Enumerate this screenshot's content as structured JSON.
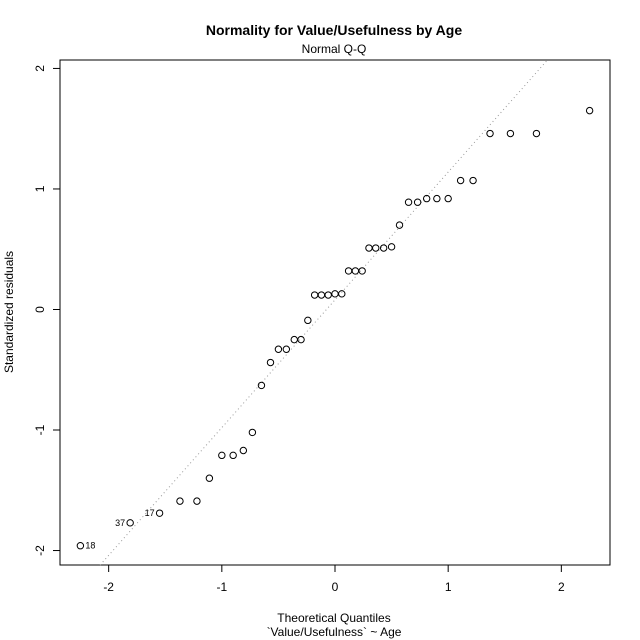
{
  "chart_data": {
    "type": "scatter",
    "title": "Normality for Value/Usefulness by Age",
    "subtitle": "Normal Q-Q",
    "xlabel": "Theoretical Quantiles",
    "xlabel2": "`Value/Usefulness` ~ Age",
    "ylabel": "Standardized residuals",
    "xlim": [
      -2.43,
      2.43
    ],
    "ylim": [
      -2.12,
      2.07
    ],
    "x_ticks": [
      -2,
      -1,
      0,
      1,
      2
    ],
    "y_ticks": [
      -2,
      -1,
      0,
      1,
      2
    ],
    "x_tick_labels": [
      "-2",
      "-1",
      "0",
      "1",
      "2"
    ],
    "y_tick_labels": [
      "-2",
      "-1",
      "0",
      "1",
      "2"
    ],
    "grid": false,
    "reference_line": {
      "slope": 1.06,
      "intercept": 0.08,
      "style": "dotted",
      "color": "#999999"
    },
    "points": [
      {
        "x": -2.25,
        "y": -1.96,
        "label": "18"
      },
      {
        "x": -1.81,
        "y": -1.77,
        "label": "37"
      },
      {
        "x": -1.55,
        "y": -1.69,
        "label": "17"
      },
      {
        "x": -1.37,
        "y": -1.59
      },
      {
        "x": -1.22,
        "y": -1.59
      },
      {
        "x": -1.11,
        "y": -1.4
      },
      {
        "x": -1.0,
        "y": -1.21
      },
      {
        "x": -0.9,
        "y": -1.21
      },
      {
        "x": -0.81,
        "y": -1.17
      },
      {
        "x": -0.73,
        "y": -1.02
      },
      {
        "x": -0.65,
        "y": -0.63
      },
      {
        "x": -0.57,
        "y": -0.44
      },
      {
        "x": -0.5,
        "y": -0.33
      },
      {
        "x": -0.43,
        "y": -0.33
      },
      {
        "x": -0.36,
        "y": -0.25
      },
      {
        "x": -0.3,
        "y": -0.25
      },
      {
        "x": -0.24,
        "y": -0.09
      },
      {
        "x": -0.18,
        "y": 0.12
      },
      {
        "x": -0.12,
        "y": 0.12
      },
      {
        "x": -0.06,
        "y": 0.12
      },
      {
        "x": 0.0,
        "y": 0.13
      },
      {
        "x": 0.06,
        "y": 0.13
      },
      {
        "x": 0.12,
        "y": 0.32
      },
      {
        "x": 0.18,
        "y": 0.32
      },
      {
        "x": 0.24,
        "y": 0.32
      },
      {
        "x": 0.3,
        "y": 0.51
      },
      {
        "x": 0.36,
        "y": 0.51
      },
      {
        "x": 0.43,
        "y": 0.51
      },
      {
        "x": 0.5,
        "y": 0.52
      },
      {
        "x": 0.57,
        "y": 0.7
      },
      {
        "x": 0.65,
        "y": 0.89
      },
      {
        "x": 0.73,
        "y": 0.89
      },
      {
        "x": 0.81,
        "y": 0.92
      },
      {
        "x": 0.9,
        "y": 0.92
      },
      {
        "x": 1.0,
        "y": 0.92
      },
      {
        "x": 1.11,
        "y": 1.07
      },
      {
        "x": 1.22,
        "y": 1.07
      },
      {
        "x": 1.37,
        "y": 1.46
      },
      {
        "x": 1.55,
        "y": 1.46
      },
      {
        "x": 1.78,
        "y": 1.46
      },
      {
        "x": 2.25,
        "y": 1.65
      }
    ]
  }
}
